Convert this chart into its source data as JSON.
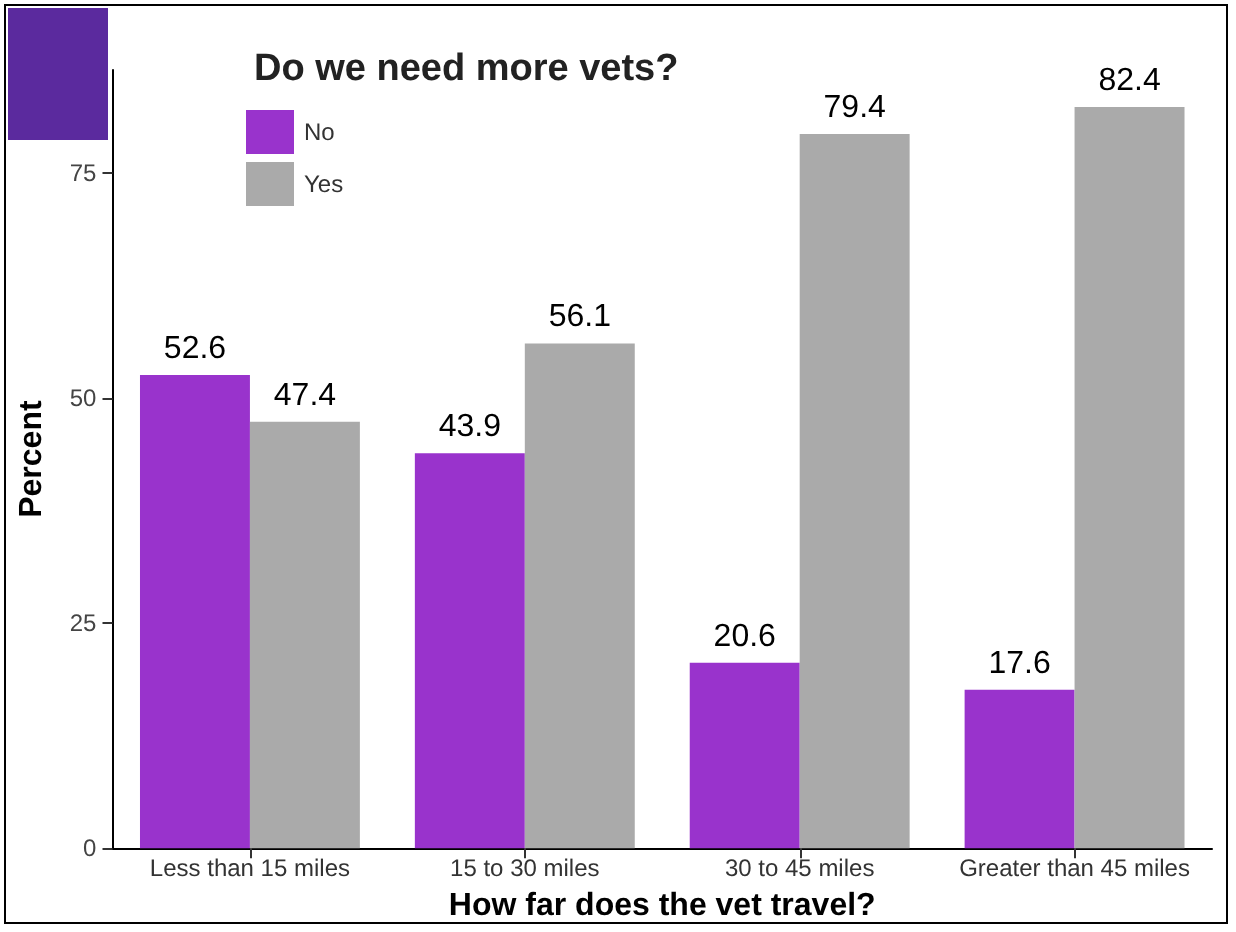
{
  "chart_data": {
    "type": "bar",
    "legend_title": "Do we need more vets?",
    "xlabel": "How far does the vet travel?",
    "ylabel": "Percent",
    "categories": [
      "Less than 15 miles",
      "15 to 30 miles",
      "30 to 45 miles",
      "Greater than 45 miles"
    ],
    "series": [
      {
        "name": "No",
        "color": "#9933cc",
        "values": [
          52.6,
          43.9,
          20.6,
          17.6
        ]
      },
      {
        "name": "Yes",
        "color": "#aaaaaa",
        "values": [
          47.4,
          56.1,
          79.4,
          82.4
        ]
      }
    ],
    "ylim": [
      0,
      86.5
    ],
    "yticks": [
      0,
      25,
      50,
      75
    ],
    "grid": false,
    "legend": "top left",
    "data_labels": true
  }
}
